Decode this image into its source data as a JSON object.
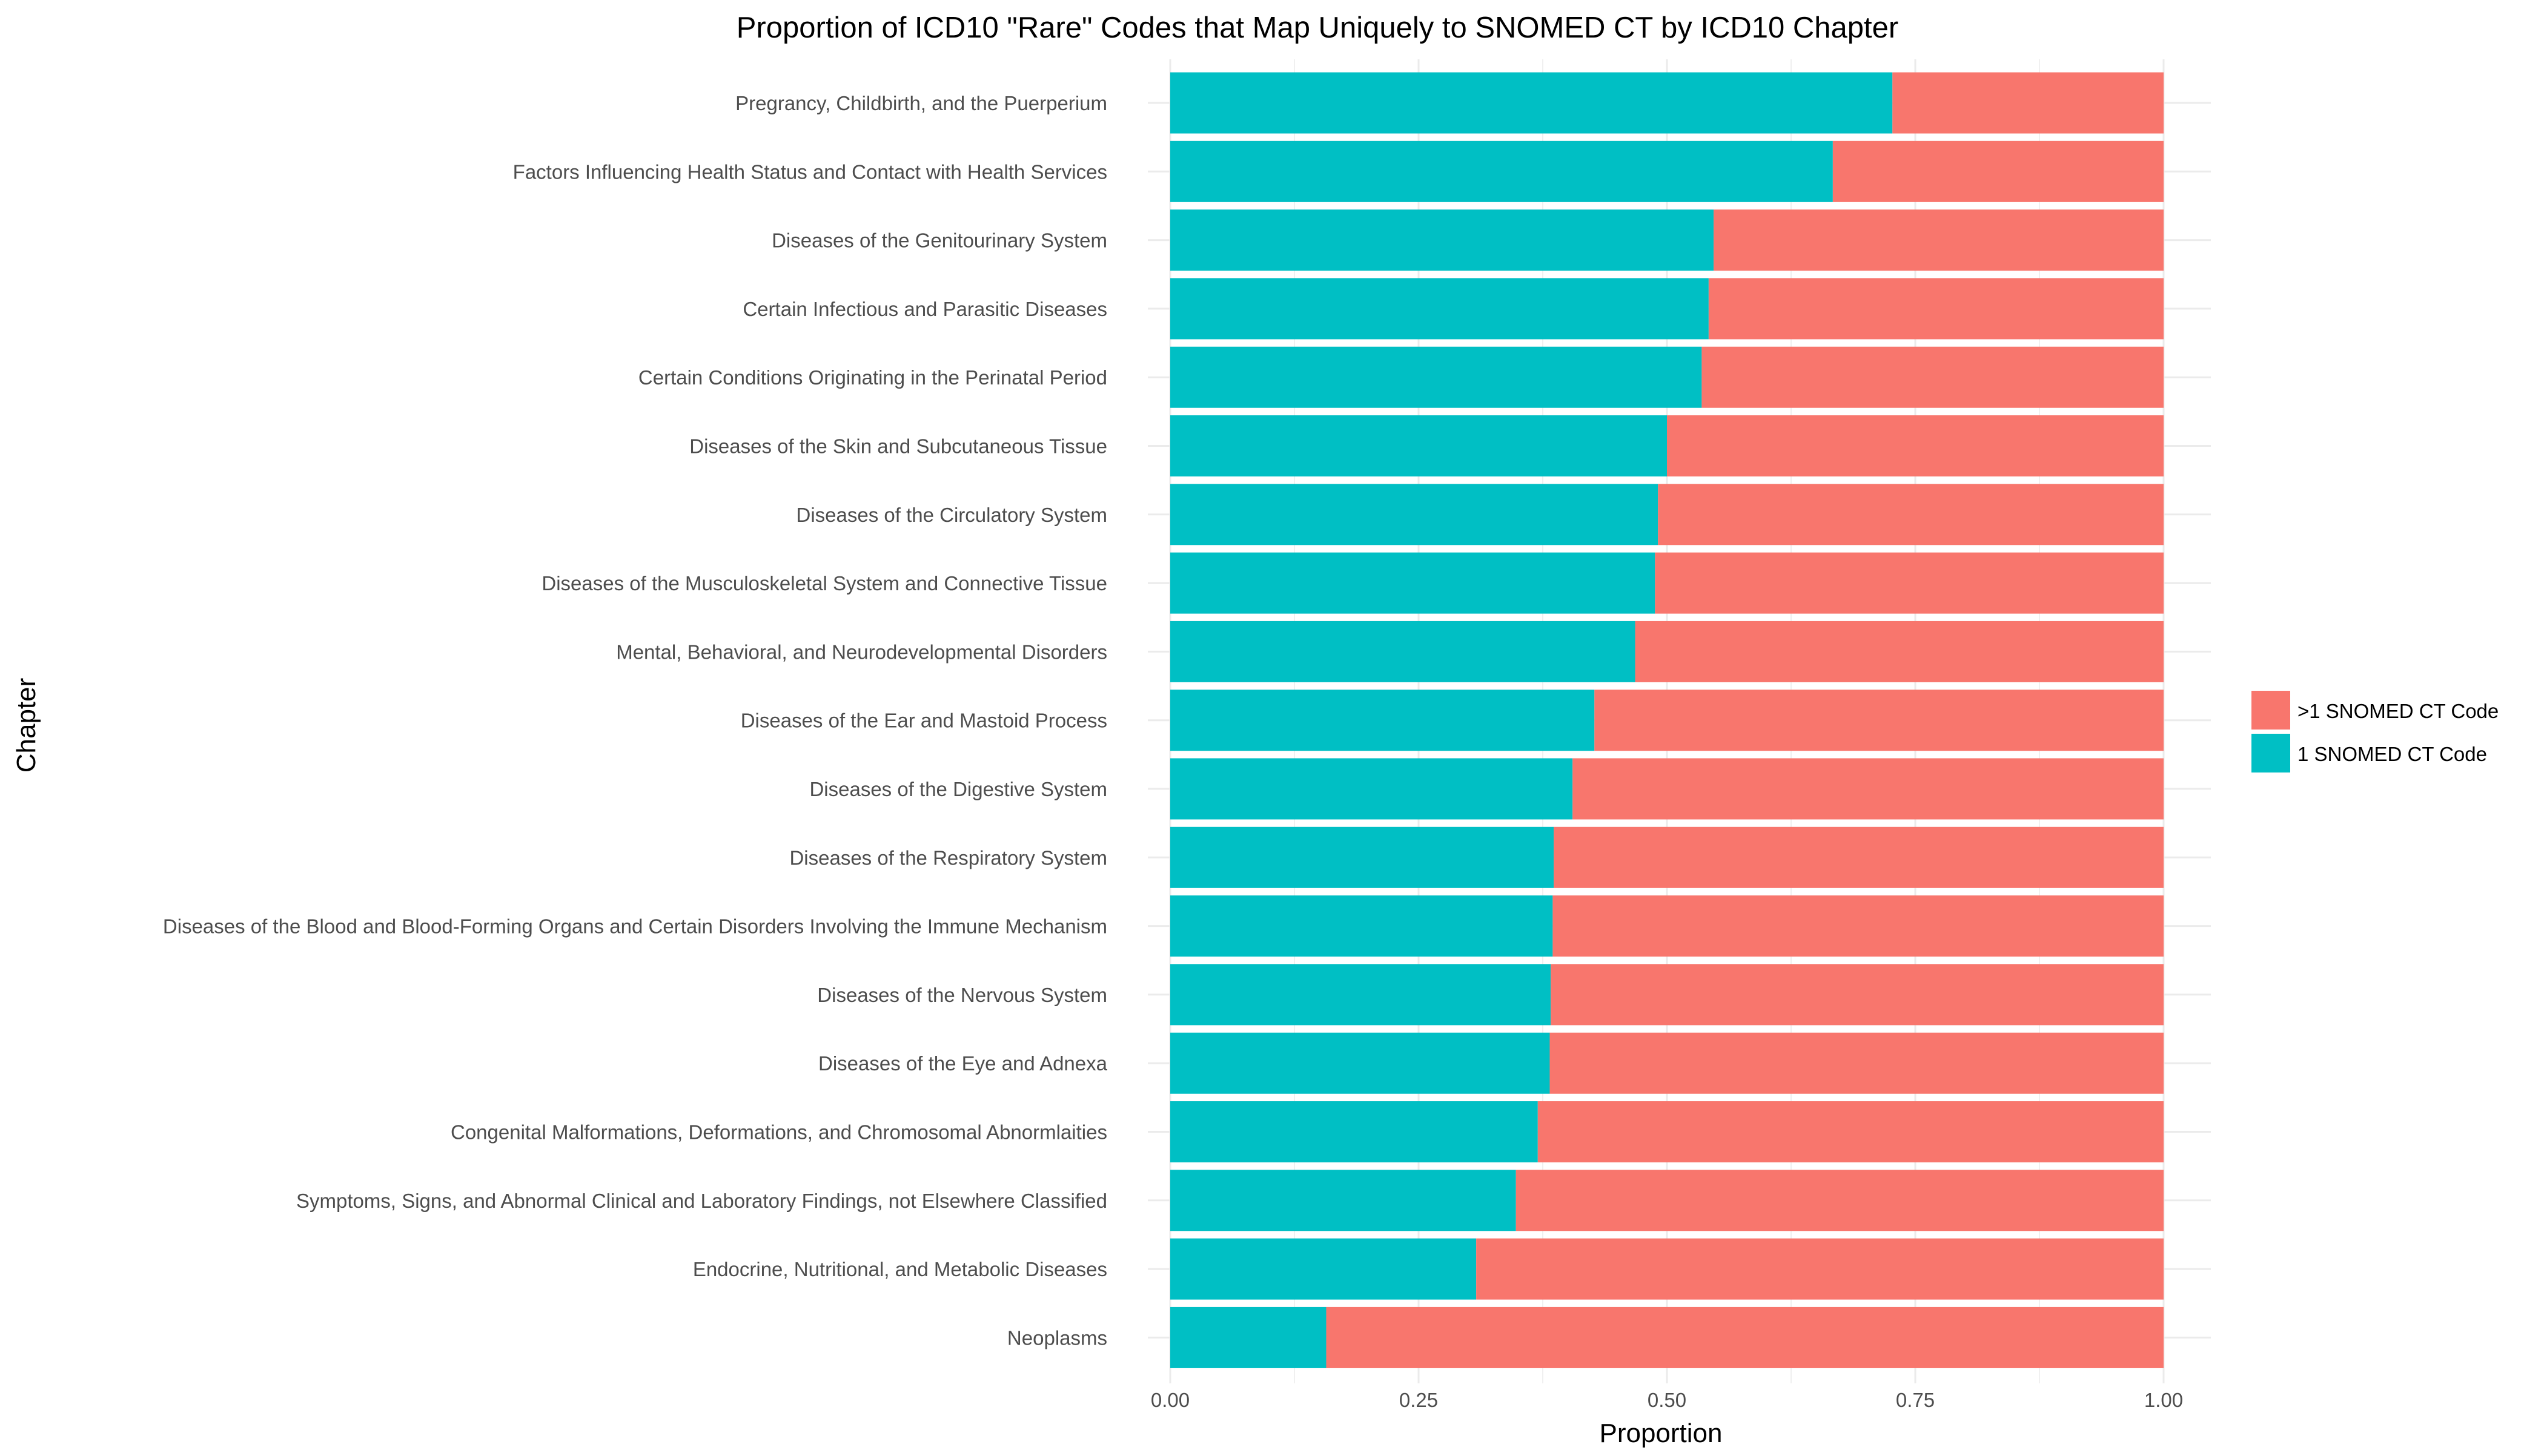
{
  "chart_data": {
    "type": "bar",
    "orientation": "horizontal",
    "stacked": true,
    "title": "Proportion of ICD10 \"Rare\" Codes that Map Uniquely to SNOMED CT by ICD10 Chapter",
    "xlabel": "Proportion",
    "ylabel": "Chapter",
    "xlim": [
      0,
      1
    ],
    "x_ticks": [
      "0.00",
      "0.25",
      "0.50",
      "0.75",
      "1.00"
    ],
    "grid": true,
    "legend_position": "right",
    "categories": [
      "Pregrancy, Childbirth, and the Puerperium",
      "Factors Influencing Health Status and Contact with Health Services",
      "Diseases of the Genitourinary System",
      "Certain Infectious and Parasitic Diseases",
      "Certain Conditions Originating in the Perinatal Period",
      "Diseases of the Skin and Subcutaneous Tissue",
      "Diseases of the Circulatory System",
      "Diseases of the Musculoskeletal System and Connective Tissue",
      "Mental, Behavioral, and Neurodevelopmental Disorders",
      "Diseases of the Ear and Mastoid Process",
      "Diseases of the Digestive System",
      "Diseases of the Respiratory System",
      "Diseases of the Blood and Blood-Forming Organs and Certain Disorders Involving the Immune Mechanism",
      "Diseases of the Nervous System",
      "Diseases of the Eye and Adnexa",
      "Congenital Malformations, Deformations, and Chromosomal Abnormlaities",
      "Symptoms, Signs, and Abnormal Clinical and Laboratory Findings, not Elsewhere Classified",
      "Endocrine, Nutritional, and Metabolic Diseases",
      "Neoplasms"
    ],
    "series": [
      {
        "name": "1 SNOMED CT Code",
        "color": "#00BFC4",
        "values": [
          0.727,
          0.667,
          0.547,
          0.542,
          0.535,
          0.5,
          0.491,
          0.488,
          0.468,
          0.427,
          0.405,
          0.386,
          0.385,
          0.383,
          0.382,
          0.37,
          0.348,
          0.308,
          0.157
        ]
      },
      {
        "name": ">1 SNOMED CT Code",
        "color": "#F8766D",
        "values": [
          0.273,
          0.333,
          0.453,
          0.458,
          0.465,
          0.5,
          0.509,
          0.512,
          0.532,
          0.573,
          0.595,
          0.614,
          0.615,
          0.617,
          0.618,
          0.63,
          0.652,
          0.692,
          0.843
        ]
      }
    ],
    "legend_order": [
      ">1 SNOMED CT Code",
      "1 SNOMED CT Code"
    ]
  }
}
